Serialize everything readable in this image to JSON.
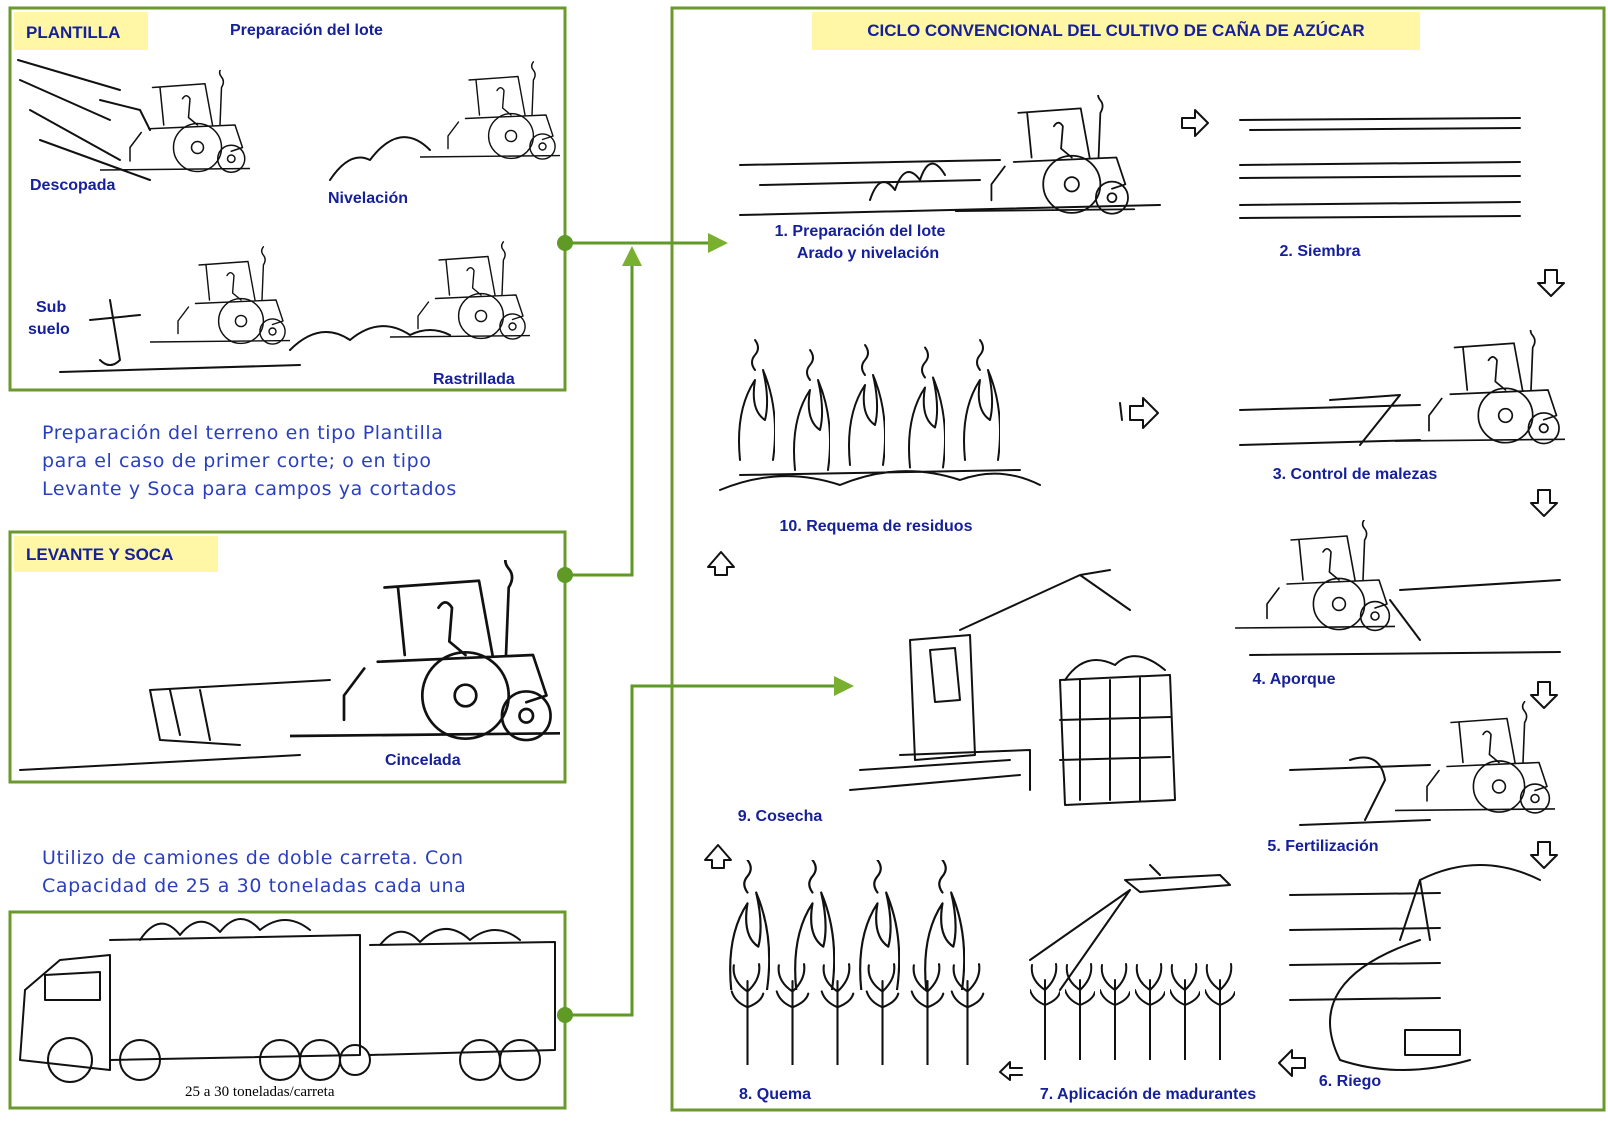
{
  "left": {
    "plantilla": {
      "tag": "PLANTILLA",
      "heading": "Preparación del lote",
      "descopada": "Descopada",
      "nivelacion": "Nivelación",
      "subsuelo": [
        "Sub",
        "suelo"
      ],
      "rastrillada": "Rastrillada"
    },
    "paragraph1": [
      "Preparación del terreno en tipo Plantilla",
      "para el caso de primer corte; o en tipo",
      "Levante y Soca para campos ya cortados"
    ],
    "levante": {
      "tag": "LEVANTE Y SOCA",
      "cincelada": "Cincelada"
    },
    "paragraph2": [
      "Utilizo de camiones de doble carreta. Con",
      "Capacidad de 25 a 30 toneladas cada una"
    ],
    "truck": {
      "caption": "25 a 30 toneladas/carreta"
    }
  },
  "cycle": {
    "title": "CICLO CONVENCIONAL DEL CULTIVO DE CAÑA DE AZÚCAR",
    "steps": [
      {
        "label": "1. Preparación del lote",
        "sublabel": "Arado y nivelación"
      },
      {
        "label": "2. Siembra"
      },
      {
        "label": "3. Control de malezas"
      },
      {
        "label": "4. Aporque"
      },
      {
        "label": "5. Fertilización"
      },
      {
        "label": "6. Riego"
      },
      {
        "label": "7. Aplicación de madurantes"
      },
      {
        "label": "8. Quema"
      },
      {
        "label": "9. Cosecha"
      },
      {
        "label": "10. Requema de residuos"
      }
    ]
  }
}
